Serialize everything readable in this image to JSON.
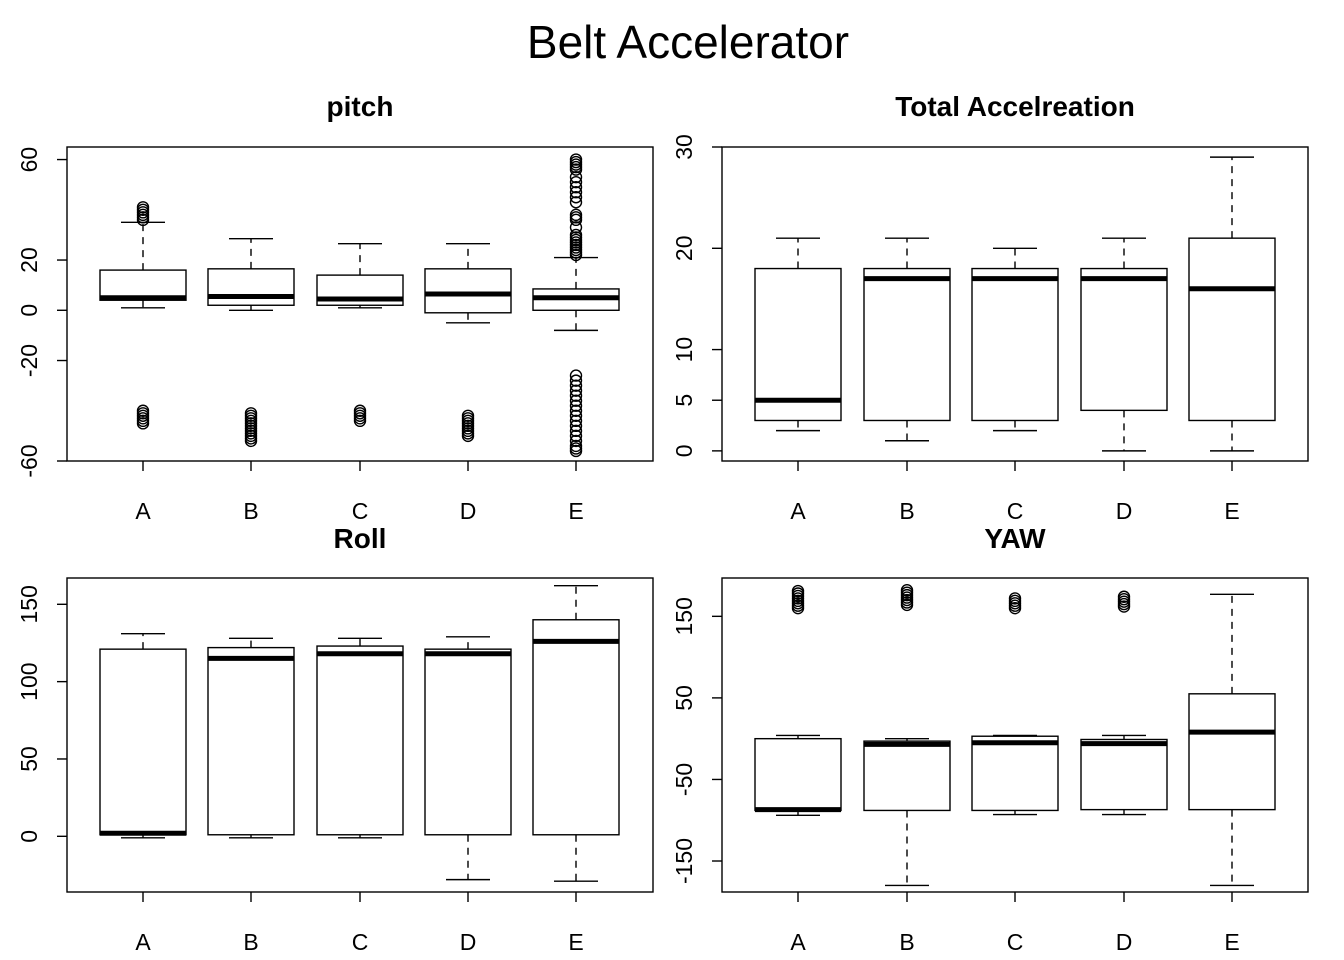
{
  "figure": {
    "title": "Belt Accelerator"
  },
  "chart_data": [
    {
      "type": "boxplot",
      "title": "pitch",
      "categories": [
        "A",
        "B",
        "C",
        "D",
        "E"
      ],
      "ylim": [
        -60,
        65
      ],
      "yticks": [
        -60,
        -20,
        0,
        20,
        60
      ],
      "ytick_labels": [
        "-60",
        "-20",
        "0",
        "20",
        "60"
      ],
      "boxes": [
        {
          "whisker_low": 1,
          "q1": 4,
          "median": 5,
          "q3": 16,
          "whisker_high": 35,
          "outliers": [
            36,
            37,
            38,
            39,
            40,
            41,
            -40,
            -41,
            -42,
            -43,
            -44,
            -45
          ]
        },
        {
          "whisker_low": 0,
          "q1": 2,
          "median": 5.5,
          "q3": 16.5,
          "whisker_high": 28.5,
          "outliers": [
            -41,
            -42,
            -43,
            -44,
            -45,
            -46,
            -47,
            -48,
            -49,
            -50,
            -51,
            -52
          ]
        },
        {
          "whisker_low": 1,
          "q1": 2,
          "median": 4.5,
          "q3": 14,
          "whisker_high": 26.5,
          "outliers": [
            -40,
            -41,
            -42,
            -43,
            -44
          ]
        },
        {
          "whisker_low": -5,
          "q1": -1,
          "median": 6.5,
          "q3": 16.5,
          "whisker_high": 26.5,
          "outliers": [
            -42,
            -43,
            -44,
            -45,
            -46,
            -47,
            -48,
            -49,
            -50
          ]
        },
        {
          "whisker_low": -8,
          "q1": 0,
          "median": 5,
          "q3": 8.5,
          "whisker_high": 21,
          "outliers": [
            22,
            23,
            24,
            25,
            26,
            27,
            28,
            29,
            30,
            33,
            36,
            37,
            38,
            43,
            45,
            47,
            49,
            51,
            53,
            56,
            57,
            58,
            59,
            60,
            -26,
            -28,
            -30,
            -32,
            -34,
            -36,
            -38,
            -40,
            -42,
            -44,
            -46,
            -48,
            -50,
            -52,
            -54,
            -55,
            -56
          ]
        }
      ]
    },
    {
      "type": "boxplot",
      "title": "Total Accelreation",
      "categories": [
        "A",
        "B",
        "C",
        "D",
        "E"
      ],
      "ylim": [
        -1,
        30
      ],
      "yticks": [
        0,
        5,
        10,
        20,
        30
      ],
      "ytick_labels": [
        "0",
        "5",
        "10",
        "20",
        "30"
      ],
      "boxes": [
        {
          "whisker_low": 2,
          "q1": 3,
          "median": 5,
          "q3": 18,
          "whisker_high": 21,
          "outliers": []
        },
        {
          "whisker_low": 1,
          "q1": 3,
          "median": 17,
          "q3": 18,
          "whisker_high": 21,
          "outliers": []
        },
        {
          "whisker_low": 2,
          "q1": 3,
          "median": 17,
          "q3": 18,
          "whisker_high": 20,
          "outliers": []
        },
        {
          "whisker_low": 0,
          "q1": 4,
          "median": 17,
          "q3": 18,
          "whisker_high": 21,
          "outliers": []
        },
        {
          "whisker_low": 0,
          "q1": 3,
          "median": 16,
          "q3": 21,
          "whisker_high": 29,
          "outliers": []
        }
      ]
    },
    {
      "type": "boxplot",
      "title": "Roll",
      "categories": [
        "A",
        "B",
        "C",
        "D",
        "E"
      ],
      "ylim": [
        -36,
        167
      ],
      "yticks": [
        0,
        50,
        100,
        150
      ],
      "ytick_labels": [
        "0",
        "50",
        "100",
        "150"
      ],
      "boxes": [
        {
          "whisker_low": -1,
          "q1": 1,
          "median": 2,
          "q3": 121,
          "whisker_high": 131,
          "outliers": []
        },
        {
          "whisker_low": -1,
          "q1": 1,
          "median": 115,
          "q3": 122,
          "whisker_high": 128,
          "outliers": []
        },
        {
          "whisker_low": -1,
          "q1": 1,
          "median": 118,
          "q3": 123,
          "whisker_high": 128,
          "outliers": []
        },
        {
          "whisker_low": -28,
          "q1": 1,
          "median": 118,
          "q3": 121,
          "whisker_high": 129,
          "outliers": []
        },
        {
          "whisker_low": -29,
          "q1": 1,
          "median": 126,
          "q3": 140,
          "whisker_high": 162,
          "outliers": []
        }
      ]
    },
    {
      "type": "boxplot",
      "title": "YAW",
      "categories": [
        "A",
        "B",
        "C",
        "D",
        "E"
      ],
      "ylim": [
        -188,
        197
      ],
      "yticks": [
        -150,
        -50,
        50,
        150
      ],
      "ytick_labels": [
        "-150",
        "-50",
        "50",
        "150"
      ],
      "boxes": [
        {
          "whisker_low": -94,
          "q1": -88,
          "median": -87,
          "q3": 0,
          "whisker_high": 4,
          "outliers": [
            160,
            163,
            166,
            169,
            172,
            175,
            178,
            181
          ]
        },
        {
          "whisker_low": -180,
          "q1": -88,
          "median": -7,
          "q3": -3,
          "whisker_high": 0,
          "outliers": [
            164,
            167,
            170,
            173,
            176,
            179,
            182
          ]
        },
        {
          "whisker_low": -93,
          "q1": -88,
          "median": -5,
          "q3": 3,
          "whisker_high": 4,
          "outliers": [
            160,
            163,
            166,
            169,
            172
          ]
        },
        {
          "whisker_low": -93,
          "q1": -87,
          "median": -6,
          "q3": -1,
          "whisker_high": 4,
          "outliers": [
            162,
            165,
            168,
            171,
            174
          ]
        },
        {
          "whisker_low": -180,
          "q1": -87,
          "median": 8,
          "q3": 55,
          "whisker_high": 177,
          "outliers": []
        }
      ]
    }
  ]
}
